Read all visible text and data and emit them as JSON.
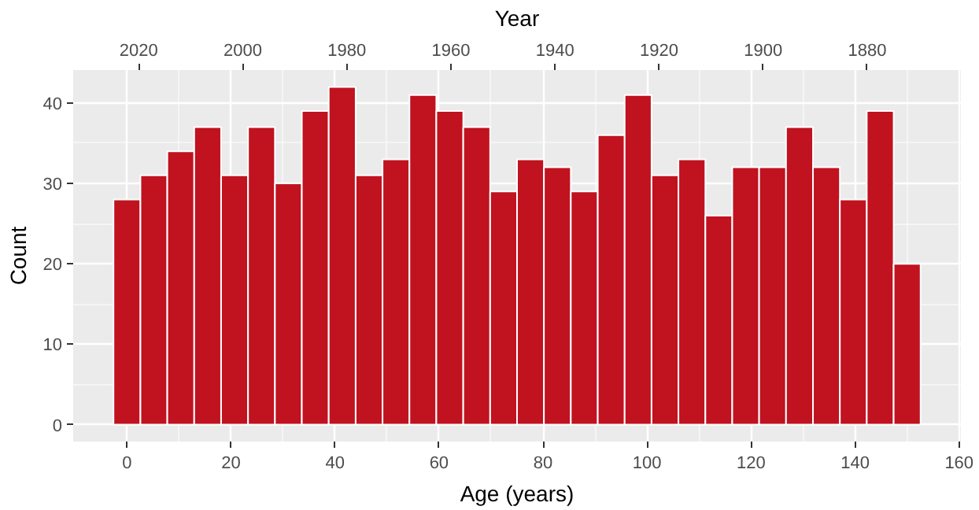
{
  "chart_data": {
    "type": "histogram",
    "xlabel": "Age (years)",
    "ylabel": "Count",
    "x2label": "Year",
    "bins": [
      -2.59,
      2.59,
      7.76,
      12.93,
      18.1,
      23.28,
      28.45,
      33.62,
      38.79,
      43.97,
      49.14,
      54.31,
      59.48,
      64.66,
      69.83,
      75.0,
      80.17,
      85.34,
      90.52,
      95.69,
      100.86,
      106.03,
      111.21,
      116.38,
      121.55,
      126.72,
      131.9,
      137.07,
      142.24,
      147.41,
      152.59
    ],
    "values": [
      28,
      31,
      34,
      37,
      31,
      37,
      30,
      39,
      42,
      31,
      33,
      41,
      39,
      37,
      29,
      33,
      32,
      29,
      36,
      41,
      31,
      33,
      26,
      32,
      32,
      37,
      32,
      28,
      39,
      20
    ],
    "color": "#c0121f",
    "xlim": [
      -10.34,
      160.34
    ],
    "xticks": [
      0,
      20,
      40,
      60,
      80,
      100,
      120,
      140,
      160
    ],
    "ylim": [
      -2.1,
      44.1
    ],
    "yticks": [
      0,
      10,
      20,
      30,
      40
    ],
    "x2lim": [
      2032.6,
      1862.0
    ],
    "x2ticks": [
      1880,
      1900,
      1920,
      1940,
      1960,
      1980,
      2000,
      2020
    ],
    "grid": true
  }
}
